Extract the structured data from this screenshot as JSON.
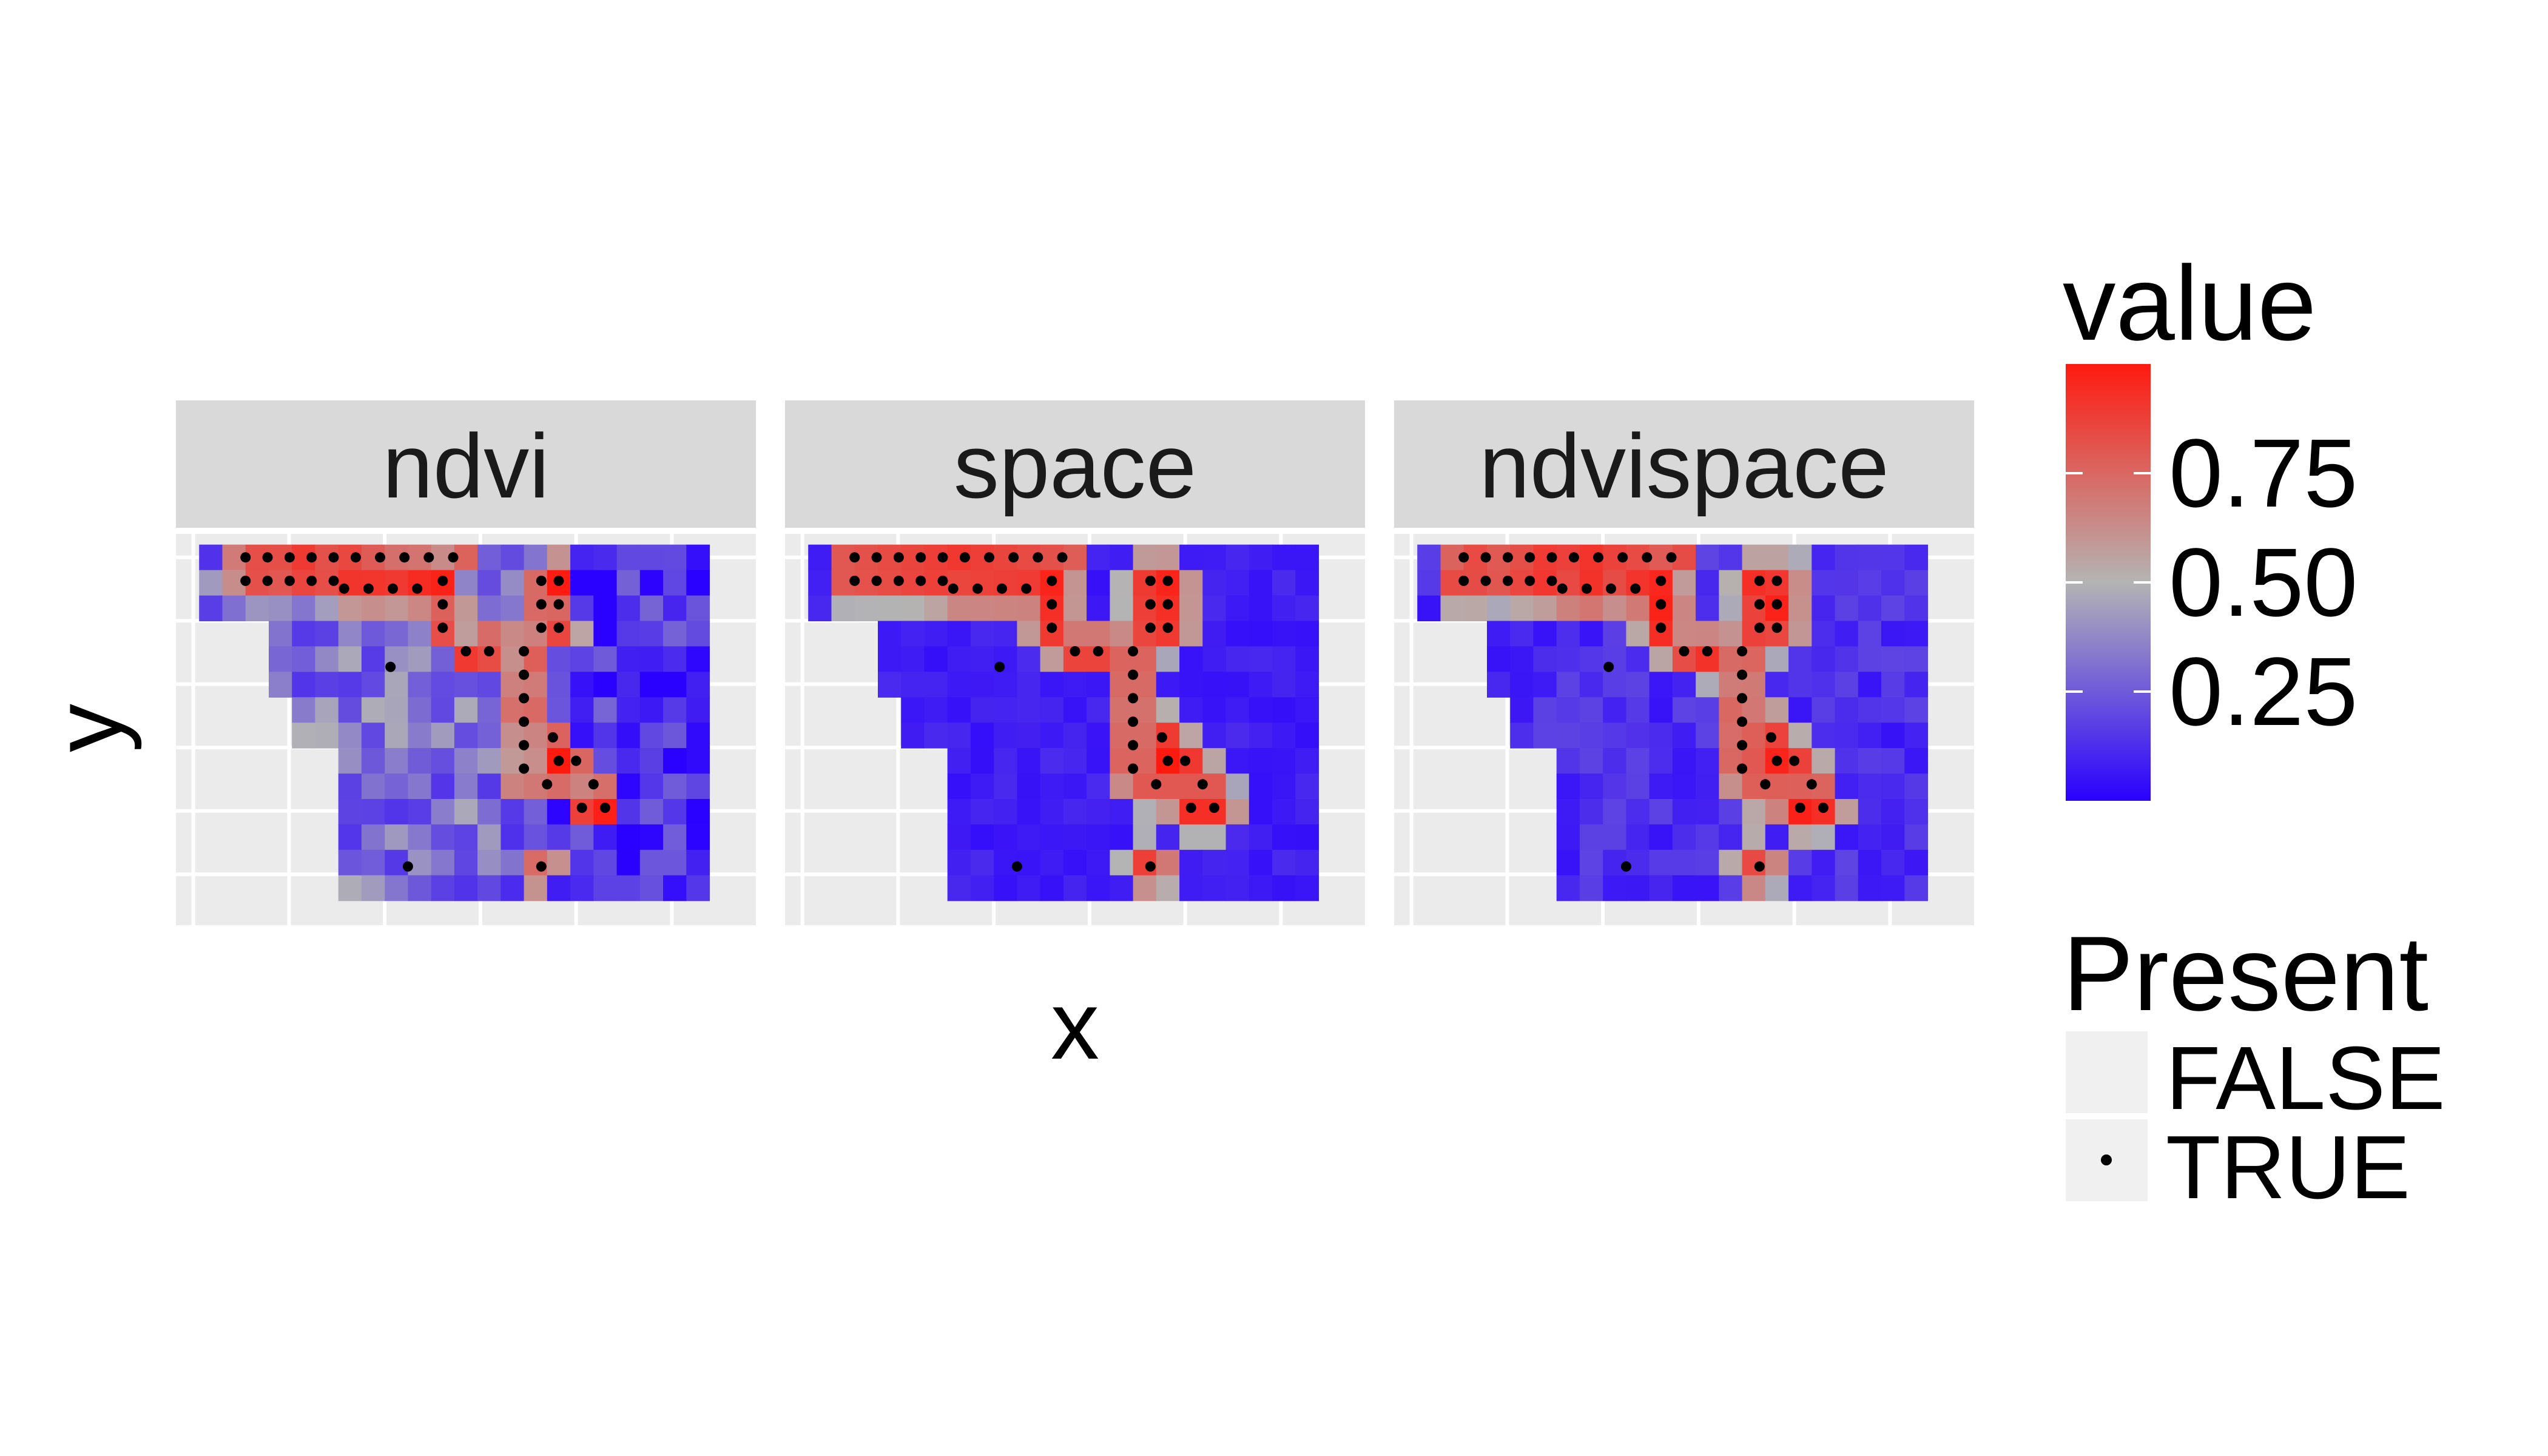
{
  "chart_data": {
    "type": "heatmap",
    "xlabel": "x",
    "ylabel": "y",
    "grid": true,
    "legend_position": "right",
    "panels": [
      {
        "name": "ndvi"
      },
      {
        "name": "space"
      },
      {
        "name": "ndvispace"
      }
    ],
    "color_legend": {
      "title": "value",
      "ticks": [
        "0.75",
        "0.50",
        "0.25"
      ],
      "tick_values": [
        0.75,
        0.5,
        0.25
      ],
      "range": [
        0,
        1
      ],
      "low_color": "#2a00ff",
      "mid_color": "#b4b4b4",
      "high_color": "#ff1a10"
    },
    "point_legend": {
      "title": "Present",
      "items": [
        {
          "label": "FALSE",
          "marker": "none"
        },
        {
          "label": "TRUE",
          "marker": "dot"
        }
      ]
    },
    "colors": {
      "panel_background": "#ebebeb",
      "gridline": "#ffffff",
      "strip_background": "#d9d9d9",
      "point": "#000000"
    }
  }
}
